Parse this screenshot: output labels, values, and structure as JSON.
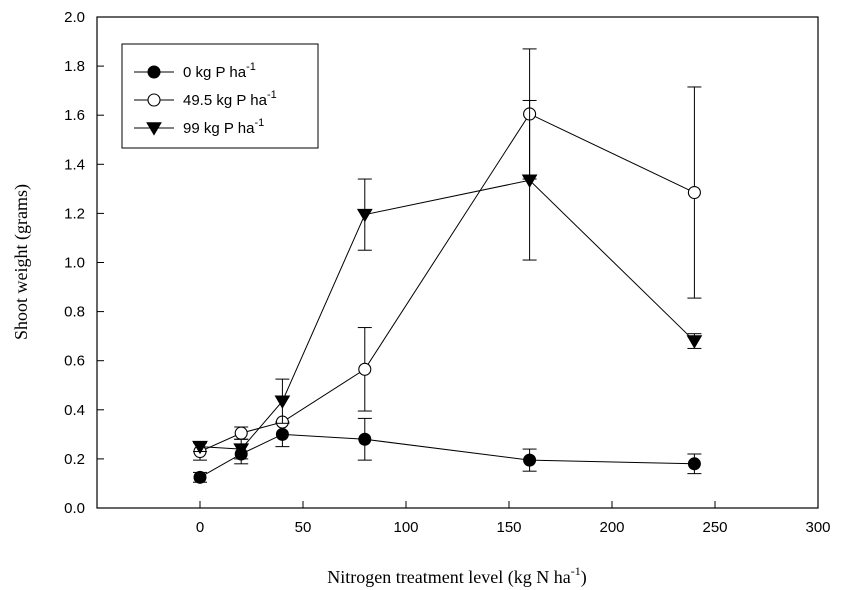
{
  "chart_data": {
    "type": "scatter",
    "xlabel": "Nitrogen treatment level (kg N ha",
    "xlabel_sup": "-1",
    "xlabel_end": ")",
    "ylabel": "Shoot weight (grams)",
    "xlim": [
      -50,
      300
    ],
    "ylim": [
      0.0,
      2.0
    ],
    "xticks": [
      0,
      50,
      100,
      150,
      200,
      250,
      300
    ],
    "xtick_labels": [
      "0",
      "50",
      "100",
      "150",
      "200",
      "250",
      "300"
    ],
    "yticks": [
      0.0,
      0.2,
      0.4,
      0.6,
      0.8,
      1.0,
      1.2,
      1.4,
      1.6,
      1.8,
      2.0
    ],
    "ytick_labels": [
      "0.0",
      "0.2",
      "0.4",
      "0.6",
      "0.8",
      "1.0",
      "1.2",
      "1.4",
      "1.6",
      "1.8",
      "2.0"
    ],
    "grid": false,
    "legend_position": "top-left",
    "series": [
      {
        "name": "0 kg P ha",
        "name_sup": "-1",
        "marker": "filled-circle",
        "x": [
          0,
          20,
          40,
          80,
          160,
          240
        ],
        "y": [
          0.125,
          0.22,
          0.3,
          0.28,
          0.195,
          0.18
        ],
        "err": [
          0.02,
          0.04,
          0.05,
          0.085,
          0.045,
          0.04
        ]
      },
      {
        "name": "49.5 kg P ha",
        "name_sup": "-1",
        "marker": "open-circle",
        "x": [
          0,
          20,
          40,
          80,
          160,
          240
        ],
        "y": [
          0.23,
          0.305,
          0.35,
          0.565,
          1.605,
          1.285
        ],
        "err": [
          0.035,
          0.025,
          0.0,
          0.17,
          0.265,
          0.43
        ]
      },
      {
        "name": "99 kg P ha",
        "name_sup": "-1",
        "marker": "filled-triangle-down",
        "x": [
          0,
          20,
          40,
          80,
          160,
          240
        ],
        "y": [
          0.25,
          0.24,
          0.435,
          1.195,
          1.335,
          0.68
        ],
        "err": [
          0.02,
          0.04,
          0.09,
          0.145,
          0.325,
          0.03
        ]
      }
    ]
  }
}
